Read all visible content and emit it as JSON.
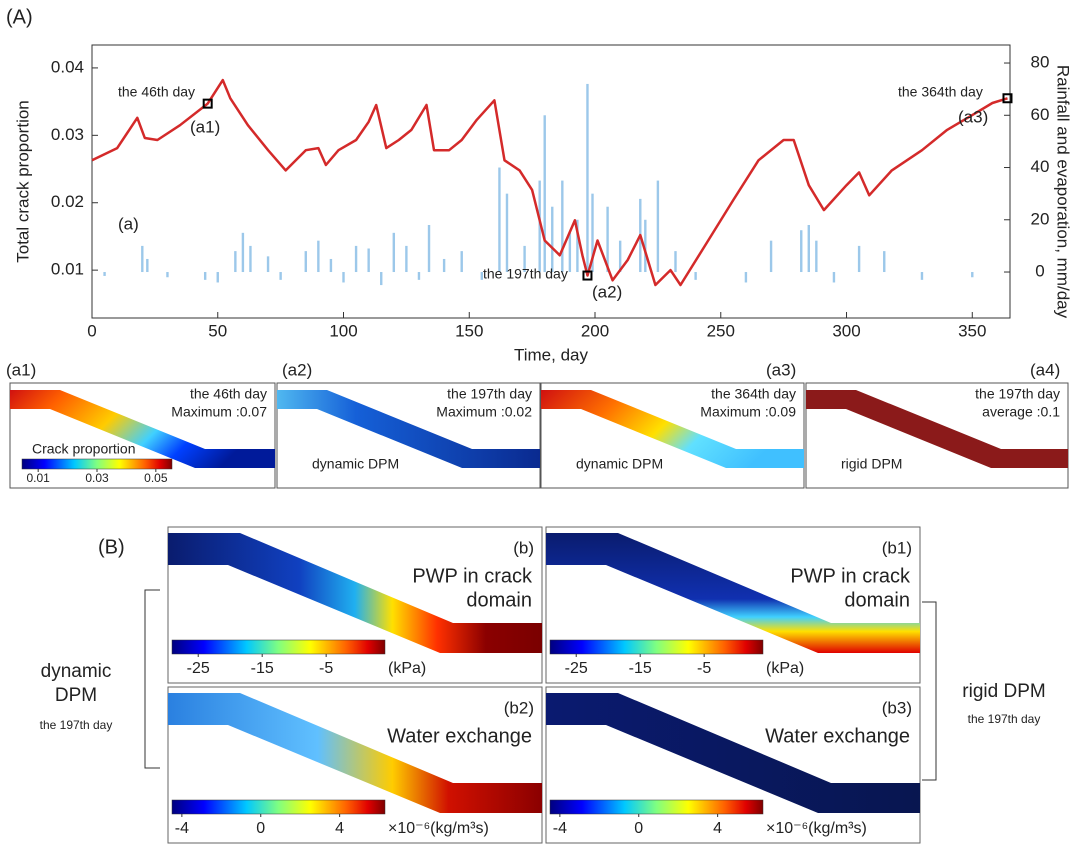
{
  "chart_data": {
    "type": "line",
    "panel_label": "(A)",
    "inner_label": "(a)",
    "x_label": "Time, day",
    "y_label": "Total crack proportion",
    "y2_label": "Rainfall and evaporation, mm/day",
    "xlim": [
      0,
      365
    ],
    "xticks": [
      0,
      50,
      100,
      150,
      200,
      250,
      300,
      350
    ],
    "ylim": [
      0.0029,
      0.0434
    ],
    "yticks": [
      0.01,
      0.02,
      0.03,
      0.04
    ],
    "y2lim": [
      -17.6,
      86.9
    ],
    "y2ticks": [
      0,
      20,
      40,
      60,
      80
    ],
    "series": [
      {
        "type": "line",
        "color": "#d42a2a",
        "x": [
          0,
          10,
          18,
          21,
          26,
          35,
          46,
          52,
          55,
          62,
          70,
          77,
          85,
          90,
          93,
          98,
          105,
          110,
          113,
          117,
          122,
          127,
          133,
          136,
          142,
          147,
          153,
          160,
          164,
          170,
          175,
          180,
          186,
          192,
          195,
          197,
          201,
          207,
          213,
          218,
          224,
          230,
          234,
          245,
          255,
          265,
          275,
          279,
          285,
          291,
          300,
          305,
          309,
          318,
          330,
          340,
          350,
          358,
          364
        ],
        "values": [
          0.0263,
          0.0281,
          0.0326,
          0.0296,
          0.0293,
          0.0315,
          0.0347,
          0.0382,
          0.0355,
          0.0315,
          0.0278,
          0.0248,
          0.0278,
          0.0281,
          0.0256,
          0.0278,
          0.0293,
          0.032,
          0.0345,
          0.0281,
          0.0293,
          0.0308,
          0.0345,
          0.0278,
          0.0278,
          0.0293,
          0.0323,
          0.0352,
          0.0263,
          0.0248,
          0.0219,
          0.0144,
          0.0122,
          0.0174,
          0.0122,
          0.0092,
          0.0144,
          0.0085,
          0.0115,
          0.0152,
          0.0078,
          0.01,
          0.0078,
          0.0144,
          0.0204,
          0.0263,
          0.0293,
          0.0293,
          0.0226,
          0.0189,
          0.0226,
          0.0245,
          0.0211,
          0.0248,
          0.0278,
          0.0308,
          0.033,
          0.0348,
          0.0355
        ]
      },
      {
        "type": "bar",
        "axis": "y2",
        "color": "#9cc8ea",
        "x": [
          5,
          20,
          22,
          30,
          45,
          50,
          57,
          60,
          63,
          70,
          75,
          85,
          90,
          95,
          100,
          105,
          110,
          115,
          120,
          125,
          130,
          134,
          140,
          147,
          155,
          162,
          165,
          172,
          178,
          180,
          183,
          187,
          190,
          193,
          197,
          199,
          205,
          210,
          218,
          220,
          225,
          232,
          240,
          260,
          270,
          282,
          285,
          288,
          295,
          305,
          315,
          330,
          350
        ],
        "values": [
          -1.5,
          10,
          5,
          -2,
          -3,
          -4,
          8,
          15,
          10,
          6,
          -3,
          8,
          12,
          5,
          -4,
          10,
          9,
          -5,
          15,
          10,
          -3,
          18,
          5,
          8,
          -3,
          40,
          30,
          10,
          35,
          60,
          25,
          35,
          15,
          20,
          72,
          30,
          25,
          12,
          28,
          20,
          35,
          8,
          -3,
          -4,
          12,
          16,
          18,
          12,
          -4,
          10,
          8,
          -3,
          -2
        ]
      }
    ],
    "annotations": [
      {
        "text": "the 46th day",
        "label": "(a1)",
        "x": 46
      },
      {
        "text": "the 197th day",
        "label": "(a2)",
        "x": 197
      },
      {
        "text": "the 364th day",
        "label": "(a3)",
        "x": 364
      }
    ]
  },
  "panels_a": [
    {
      "label": "(a1)",
      "day": "the 46th day",
      "stat": "Maximum :0.07",
      "colorbar": {
        "title": "Crack proportion",
        "lim": [
          0.0045,
          0.0555
        ],
        "ticks": [
          0.01,
          0.03,
          0.05
        ]
      }
    },
    {
      "label": "(a2)",
      "day": "the 197th day",
      "stat": "Maximum :0.02",
      "note": "dynamic DPM"
    },
    {
      "label": "(a3)",
      "day": "the 364th day",
      "stat": "Maximum :0.09",
      "note": "dynamic DPM"
    },
    {
      "label": "(a4)",
      "day": "the 197th day",
      "stat": "average :0.1",
      "note": "rigid DPM"
    }
  ],
  "section_b": {
    "label": "(B)",
    "left": {
      "title": [
        "dynamic",
        "DPM"
      ],
      "day": "the 197th day"
    },
    "right": {
      "title": [
        "rigid DPM"
      ],
      "day": "the 197th day"
    },
    "panels": [
      {
        "label": "(b)",
        "title": [
          "PWP in crack",
          "domain"
        ],
        "colorbar": {
          "lim": [
            -29.1,
            4.2
          ],
          "ticks": [
            -25,
            -15,
            -5
          ],
          "unit": "(kPa)"
        }
      },
      {
        "label": "(b1)",
        "title": [
          "PWP in crack",
          "domain"
        ],
        "colorbar": {
          "lim": [
            -29.1,
            4.2
          ],
          "ticks": [
            -25,
            -15,
            -5
          ],
          "unit": "(kPa)"
        }
      },
      {
        "label": "(b2)",
        "title": [
          "Water exchange"
        ],
        "colorbar": {
          "lim": [
            -4.5,
            6.3
          ],
          "ticks": [
            -4,
            0,
            4
          ],
          "unit": "×10⁻⁶(kg/m³s)"
        }
      },
      {
        "label": "(b3)",
        "title": [
          "Water exchange"
        ],
        "colorbar": {
          "lim": [
            -4.5,
            6.3
          ],
          "ticks": [
            -4,
            0,
            4
          ],
          "unit": "×10⁻⁶(kg/m³s)"
        }
      }
    ]
  }
}
